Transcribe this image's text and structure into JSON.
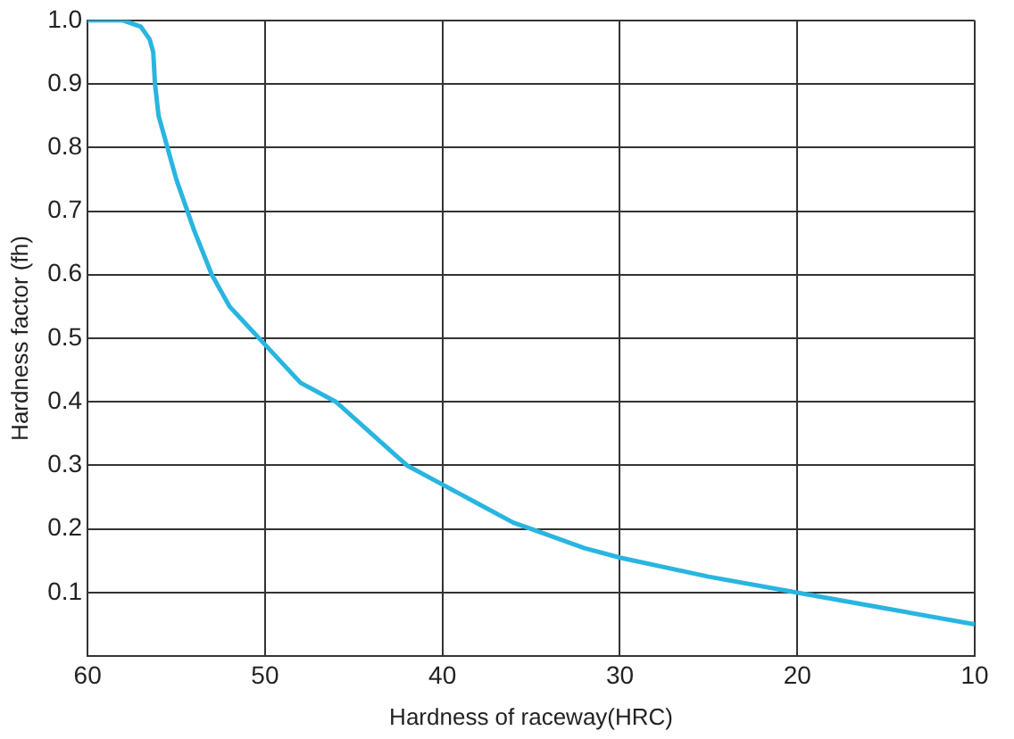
{
  "chart_data": {
    "type": "line",
    "xlabel": "Hardness of raceway(HRC)",
    "ylabel": "Hardness factor (fh)",
    "x": [
      60,
      58,
      57,
      56.5,
      56.3,
      56.2,
      56,
      55.5,
      55,
      54,
      53,
      52,
      51,
      50,
      48,
      46,
      44,
      42,
      40,
      38,
      36,
      35,
      32,
      30,
      25,
      20,
      15,
      10
    ],
    "series": [
      {
        "color": "#29b5e0",
        "values": [
          1.0,
          1.0,
          0.99,
          0.97,
          0.95,
          0.9,
          0.85,
          0.8,
          0.75,
          0.67,
          0.6,
          0.55,
          0.52,
          0.49,
          0.43,
          0.4,
          0.35,
          0.3,
          0.27,
          0.24,
          0.21,
          0.2,
          0.17,
          0.155,
          0.125,
          0.1,
          0.075,
          0.05
        ]
      }
    ],
    "xlim": [
      60,
      10
    ],
    "xticks": [
      60,
      50,
      40,
      30,
      20,
      10
    ],
    "ylim": [
      0,
      1
    ],
    "yticks": [
      0.1,
      0.2,
      0.3,
      0.4,
      0.5,
      0.6,
      0.7,
      0.8,
      0.9,
      {
        "value": 1,
        "label": "1.0"
      }
    ],
    "grid": true,
    "legend": false,
    "marker": "none",
    "line_style": "solid"
  }
}
